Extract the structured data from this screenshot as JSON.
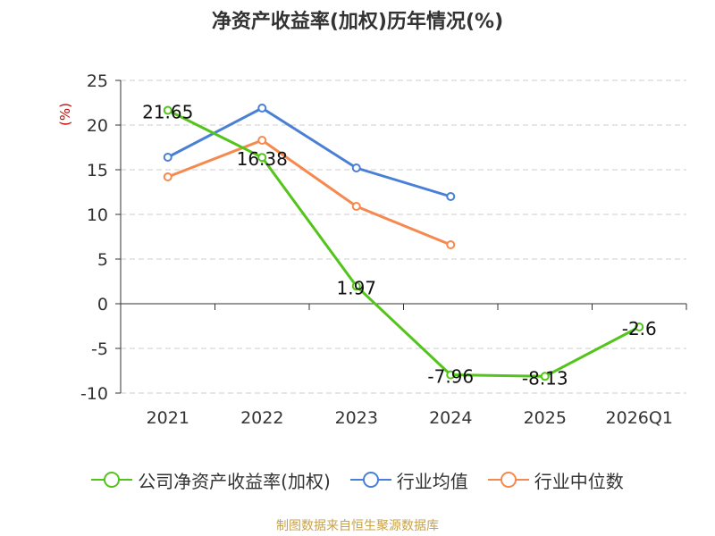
{
  "chart_data": {
    "type": "line",
    "title": "净资产收益率(加权)历年情况(%)",
    "ylabel": "(%)",
    "categories": [
      "2021",
      "2022",
      "2023",
      "2024",
      "2025",
      "2026Q1"
    ],
    "ylim": [
      -10,
      25
    ],
    "yticks": [
      25,
      20,
      15,
      10,
      5,
      0,
      -5,
      -10
    ],
    "grid": true,
    "legend_position": "bottom",
    "series": [
      {
        "name": "公司净资产收益率(加权)",
        "color": "#52c41a",
        "values": [
          21.65,
          16.38,
          1.97,
          -7.96,
          -8.13,
          -2.6
        ],
        "labels": [
          "21.65",
          "16.38",
          "1.97",
          "-7.96",
          "-8.13",
          "-2.6"
        ]
      },
      {
        "name": "行业均值",
        "color": "#4a7fd6",
        "values": [
          16.4,
          21.9,
          15.2,
          12.0,
          null,
          null
        ]
      },
      {
        "name": "行业中位数",
        "color": "#f5894e",
        "values": [
          14.2,
          18.3,
          10.9,
          6.6,
          null,
          null
        ]
      }
    ]
  },
  "source_note": "制图数据来自恒生聚源数据库"
}
